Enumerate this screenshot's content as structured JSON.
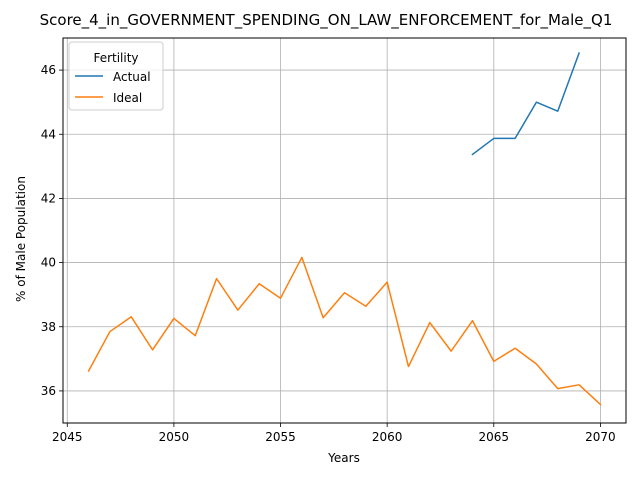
{
  "chart_data": {
    "type": "line",
    "title": "Score_4_in_GOVERNMENT_SPENDING_ON_LAW_ENFORCEMENT_for_Male_Q1",
    "xlabel": "Years",
    "ylabel": "% of Male Population",
    "xlim": [
      2044.8,
      2071.2
    ],
    "ylim": [
      35.0,
      47.0
    ],
    "x_ticks": [
      2045,
      2050,
      2055,
      2060,
      2065,
      2070
    ],
    "y_ticks": [
      36,
      38,
      40,
      42,
      44,
      46
    ],
    "grid": true,
    "legend": {
      "title": "Fertility",
      "placement": "upper-left"
    },
    "series": [
      {
        "name": "Actual",
        "color": "#1f77b4",
        "x": [
          2064,
          2065,
          2066,
          2067,
          2068,
          2069
        ],
        "y": [
          43.37,
          43.87,
          43.87,
          45.0,
          44.72,
          46.53
        ]
      },
      {
        "name": "Ideal",
        "color": "#ff7f0e",
        "x": [
          2046,
          2047,
          2048,
          2049,
          2050,
          2051,
          2052,
          2053,
          2054,
          2055,
          2056,
          2057,
          2058,
          2059,
          2060,
          2061,
          2062,
          2063,
          2064,
          2065,
          2066,
          2067,
          2068,
          2069,
          2070
        ],
        "y": [
          36.62,
          37.85,
          38.31,
          37.28,
          38.26,
          37.72,
          39.5,
          38.52,
          39.34,
          38.89,
          40.16,
          38.28,
          39.06,
          38.64,
          39.39,
          36.76,
          38.13,
          37.24,
          38.19,
          36.92,
          37.33,
          36.84,
          36.07,
          36.19,
          35.58
        ]
      }
    ]
  }
}
